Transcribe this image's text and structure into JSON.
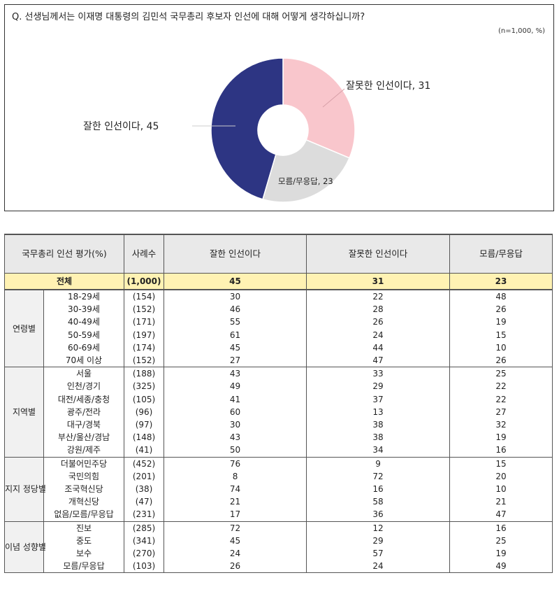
{
  "question": "Q. 선생님께서는 이재명 대통령의 김민석 국무총리 후보자 인선에 대해 어떻게 생각하십니까?",
  "unit_note": "(n=1,000,  %)",
  "chart_data": {
    "type": "pie",
    "donut": true,
    "slices": [
      {
        "label": "잘한 인선이다, 45",
        "value": 45,
        "color": "#2d3583"
      },
      {
        "label": "잘못한 인선이다, 31",
        "value": 31,
        "color": "#f9c6cc"
      },
      {
        "label": "모름/무응답, 23",
        "value": 23,
        "color": "#dcdcdc"
      }
    ]
  },
  "table": {
    "headers": [
      "국무총리 인선 평가(%)",
      "사례수",
      "잘한 인선이다",
      "잘못한 인선이다",
      "모름/무응답"
    ],
    "total": {
      "label": "전체",
      "n": "(1,000)",
      "good": "45",
      "bad": "31",
      "dk": "23"
    },
    "groups": [
      {
        "name": "연령별",
        "rows": [
          {
            "label": "18-29세",
            "n": "(154)",
            "good": "30",
            "bad": "22",
            "dk": "48"
          },
          {
            "label": "30-39세",
            "n": "(152)",
            "good": "46",
            "bad": "28",
            "dk": "26"
          },
          {
            "label": "40-49세",
            "n": "(171)",
            "good": "55",
            "bad": "26",
            "dk": "19"
          },
          {
            "label": "50-59세",
            "n": "(197)",
            "good": "61",
            "bad": "24",
            "dk": "15"
          },
          {
            "label": "60-69세",
            "n": "(174)",
            "good": "45",
            "bad": "44",
            "dk": "10"
          },
          {
            "label": "70세 이상",
            "n": "(152)",
            "good": "27",
            "bad": "47",
            "dk": "26"
          }
        ]
      },
      {
        "name": "지역별",
        "rows": [
          {
            "label": "서울",
            "n": "(188)",
            "good": "43",
            "bad": "33",
            "dk": "25"
          },
          {
            "label": "인천/경기",
            "n": "(325)",
            "good": "49",
            "bad": "29",
            "dk": "22"
          },
          {
            "label": "대전/세종/충청",
            "n": "(105)",
            "good": "41",
            "bad": "37",
            "dk": "22"
          },
          {
            "label": "광주/전라",
            "n": "(96)",
            "good": "60",
            "bad": "13",
            "dk": "27"
          },
          {
            "label": "대구/경북",
            "n": "(97)",
            "good": "30",
            "bad": "38",
            "dk": "32"
          },
          {
            "label": "부산/울산/경남",
            "n": "(148)",
            "good": "43",
            "bad": "38",
            "dk": "19"
          },
          {
            "label": "강원/제주",
            "n": "(41)",
            "good": "50",
            "bad": "34",
            "dk": "16"
          }
        ]
      },
      {
        "name": "지지 정당별",
        "rows": [
          {
            "label": "더불어민주당",
            "n": "(452)",
            "good": "76",
            "bad": "9",
            "dk": "15"
          },
          {
            "label": "국민의힘",
            "n": "(201)",
            "good": "8",
            "bad": "72",
            "dk": "20"
          },
          {
            "label": "조국혁신당",
            "n": "(38)",
            "good": "74",
            "bad": "16",
            "dk": "10"
          },
          {
            "label": "개혁신당",
            "n": "(47)",
            "good": "21",
            "bad": "58",
            "dk": "21"
          },
          {
            "label": "없음/모름/무응답",
            "n": "(231)",
            "good": "17",
            "bad": "36",
            "dk": "47"
          }
        ]
      },
      {
        "name": "이념 성향별",
        "rows": [
          {
            "label": "진보",
            "n": "(285)",
            "good": "72",
            "bad": "12",
            "dk": "16"
          },
          {
            "label": "중도",
            "n": "(341)",
            "good": "45",
            "bad": "29",
            "dk": "25"
          },
          {
            "label": "보수",
            "n": "(270)",
            "good": "24",
            "bad": "57",
            "dk": "19"
          },
          {
            "label": "모름/무응답",
            "n": "(103)",
            "good": "26",
            "bad": "24",
            "dk": "49"
          }
        ]
      }
    ]
  }
}
